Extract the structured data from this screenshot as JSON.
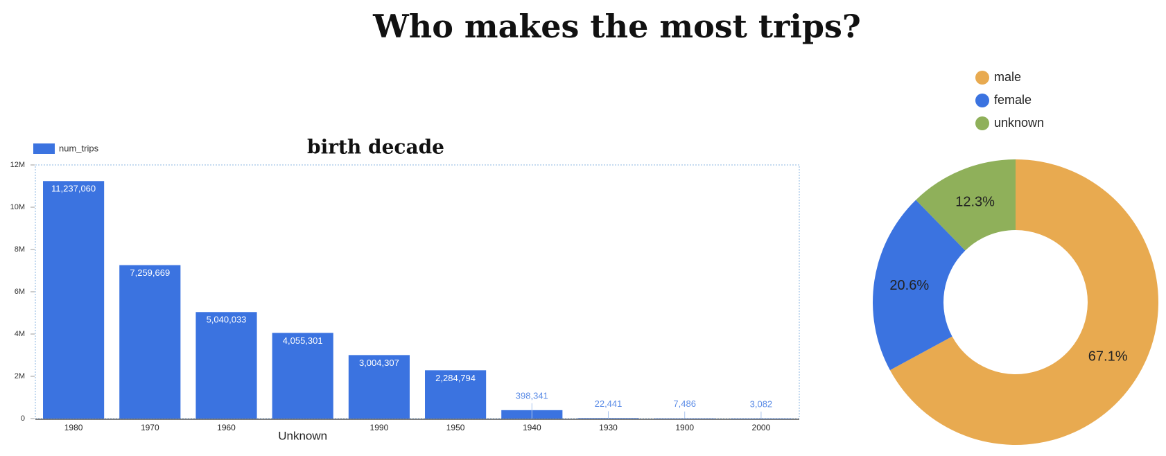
{
  "title": "Who makes the most trips?",
  "chart_data": [
    {
      "type": "bar",
      "title": "birth decade",
      "categories": [
        "1980",
        "1970",
        "1960",
        "Unknown",
        "1990",
        "1950",
        "1940",
        "1930",
        "1900",
        "2000"
      ],
      "series": [
        {
          "name": "num_trips",
          "color": "#3b73e0",
          "values": [
            11237060,
            7259669,
            5040033,
            4055301,
            3004307,
            2284794,
            398341,
            22441,
            7486,
            3082
          ],
          "value_labels": [
            "11,237,060",
            "7,259,669",
            "5,040,033",
            "4,055,301",
            "3,004,307",
            "2,284,794",
            "398,341",
            "22,441",
            "7,486",
            "3,082"
          ]
        }
      ],
      "ylim": [
        0,
        12000000
      ],
      "yticks": [
        0,
        {
          "value": 2000000,
          "label": "2M"
        },
        {
          "value": 4000000,
          "label": "4M"
        },
        {
          "value": 6000000,
          "label": "6M"
        },
        {
          "value": 8000000,
          "label": "8M"
        },
        {
          "value": 10000000,
          "label": "10M"
        },
        {
          "value": 12000000,
          "label": "12M"
        }
      ],
      "grid": false,
      "legend": "top-left"
    },
    {
      "type": "pie",
      "donut": true,
      "categories": [
        "male",
        "female",
        "unknown"
      ],
      "values": [
        67.1,
        20.6,
        12.3
      ],
      "value_labels": [
        "67.1%",
        "20.6%",
        "12.3%"
      ],
      "colors": [
        "#e8aa50",
        "#3b73e0",
        "#8fb05a"
      ],
      "legend": "top"
    }
  ]
}
